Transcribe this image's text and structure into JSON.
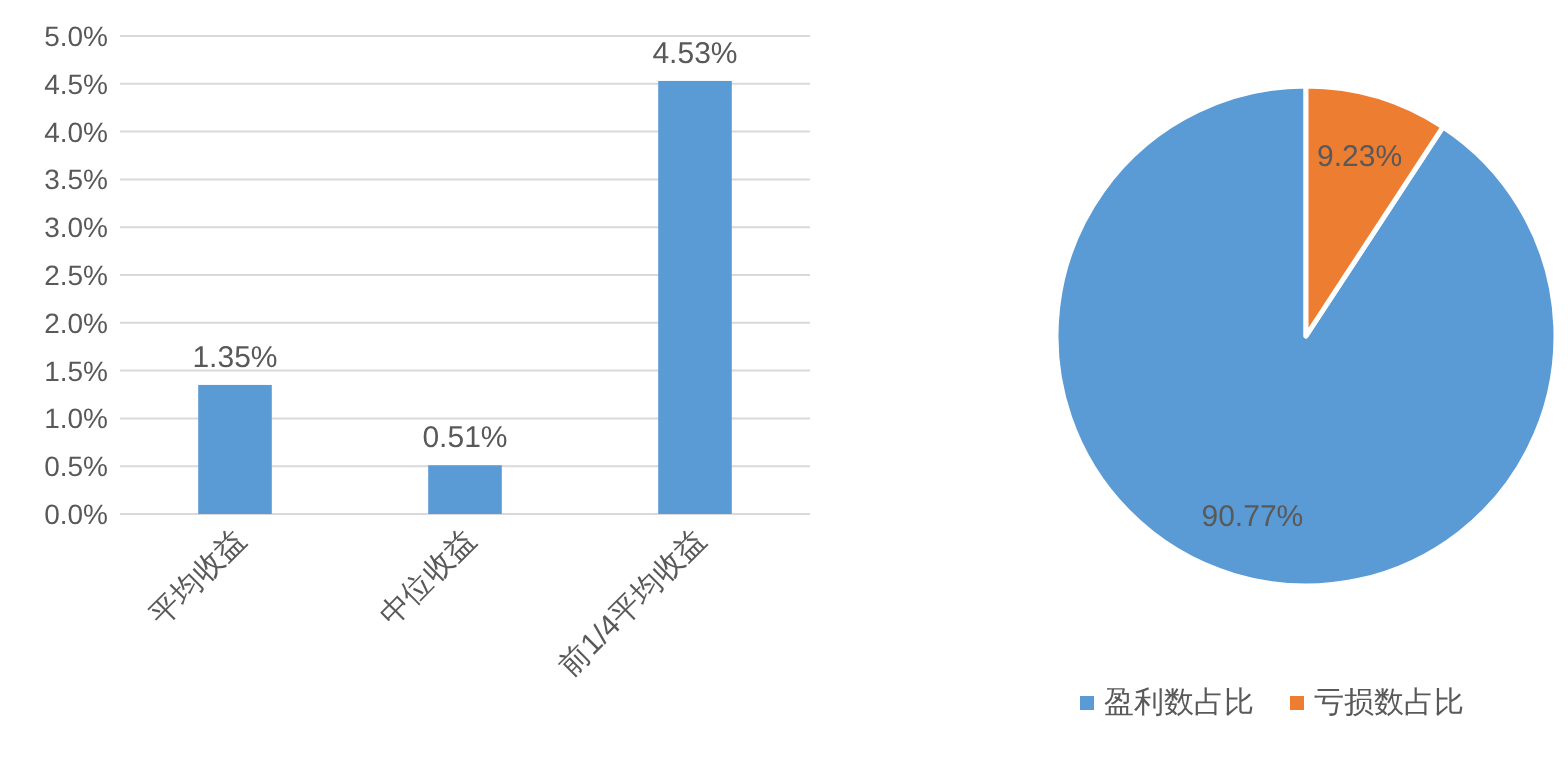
{
  "chart_data": [
    {
      "type": "bar",
      "categories": [
        "平均收益",
        "中位收益",
        "前1/4平均收益"
      ],
      "values": [
        1.35,
        0.51,
        4.53
      ],
      "color": "#5b9bd5",
      "value_labels": [
        "1.35%",
        "0.51%",
        "4.53%"
      ],
      "ylim": [
        0,
        5
      ],
      "yticks": [
        {
          "value": 0,
          "label": "0.0%"
        },
        {
          "value": 0.5,
          "label": "0.5%"
        },
        {
          "value": 1,
          "label": "1.0%"
        },
        {
          "value": 1.5,
          "label": "1.5%"
        },
        {
          "value": 2,
          "label": "2.0%"
        },
        {
          "value": 2.5,
          "label": "2.5%"
        },
        {
          "value": 3,
          "label": "3.0%"
        },
        {
          "value": 3.5,
          "label": "3.5%"
        },
        {
          "value": 4,
          "label": "4.0%"
        },
        {
          "value": 4.5,
          "label": "4.5%"
        },
        {
          "value": 5,
          "label": "5.0%"
        }
      ],
      "grid": "y"
    },
    {
      "type": "pie",
      "categories": [
        "盈利数占比",
        "亏损数占比"
      ],
      "values": [
        90.77,
        9.23
      ],
      "colors": [
        "#5b9bd5",
        "#ed7d31"
      ],
      "value_labels": [
        "90.77%",
        "9.23%"
      ],
      "legend": "bottom"
    }
  ]
}
